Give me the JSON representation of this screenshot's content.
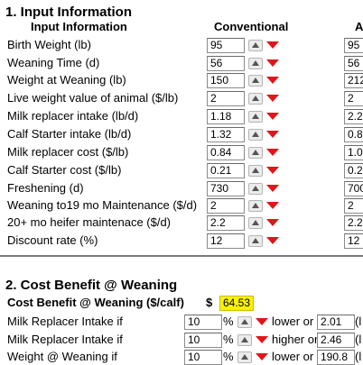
{
  "section1": {
    "title": "1. Input Information",
    "col_label": "Input Information",
    "col_conventional": "Conventional",
    "col_alt": "A",
    "rows": [
      {
        "label": "Birth Weight (lb)",
        "conv": "95",
        "alt": "95"
      },
      {
        "label": "Weaning Time (d)",
        "conv": "56",
        "alt": "56"
      },
      {
        "label": "Weight at Weaning (lb)",
        "conv": "150",
        "alt": "212"
      },
      {
        "label": "Live weight value of animal ($/lb)",
        "conv": "2",
        "alt": "2"
      },
      {
        "label": "Milk replacer intake (lb/d)",
        "conv": "1.18",
        "alt": "2.2"
      },
      {
        "label": "Calf Starter intake (lb/d)",
        "conv": "1.32",
        "alt": "0.8"
      },
      {
        "label": "Milk replacer cost ($/lb)",
        "conv": "0.84",
        "alt": "1.0"
      },
      {
        "label": "Calf Starter cost ($/lb)",
        "conv": "0.21",
        "alt": "0.2"
      },
      {
        "label": "Freshening (d)",
        "conv": "730",
        "alt": "700"
      },
      {
        "label": "Weaning to19 mo Maintenance ($/d)",
        "conv": "2",
        "alt": "2"
      },
      {
        "label": "20+ mo heifer maintenace ($/d)",
        "conv": "2.2",
        "alt": "2.2"
      },
      {
        "label": "Discount rate (%)",
        "conv": "12",
        "alt": "12"
      }
    ]
  },
  "section2": {
    "title": "2. Cost Benefit @ Weaning",
    "cb_label": "Cost Benefit @ Weaning ($/calf)",
    "currency": "$",
    "cb_value": "64.53",
    "rows": [
      {
        "label": "Milk Replacer Intake if",
        "pct": "10",
        "pct_sign": "%",
        "dir": "lower or",
        "val": "2.01",
        "tail": "(l"
      },
      {
        "label": "Milk Replacer Intake if",
        "pct": "10",
        "pct_sign": "%",
        "dir": "higher or",
        "val": "2.46",
        "tail": "(l"
      },
      {
        "label": "Weight @ Weaning if",
        "pct": "10",
        "pct_sign": "%",
        "dir": "lower or",
        "val": "190.8",
        "tail": "(l"
      }
    ]
  },
  "colors": {
    "down_arrow": "#e0161a",
    "highlight": "#f8f200"
  },
  "icons": {
    "up": "arrow-up-icon",
    "down": "arrow-down-icon"
  }
}
